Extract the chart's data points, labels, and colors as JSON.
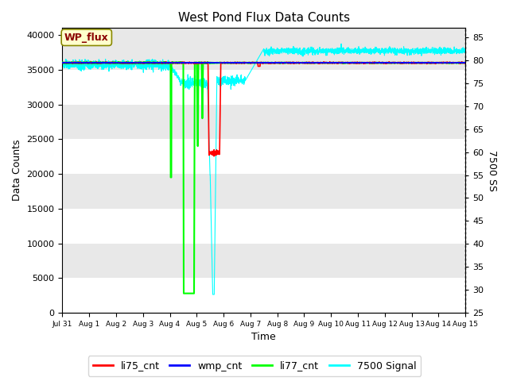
{
  "title": "West Pond Flux Data Counts",
  "xlabel": "Time",
  "ylabel": "Data Counts",
  "ylabel_right": "7500 SS",
  "annotation": "WP_flux",
  "xlim_days": [
    0,
    15
  ],
  "ylim_left": [
    0,
    41000
  ],
  "ylim_right": [
    25,
    87
  ],
  "xtick_labels": [
    "Jul 31",
    "Aug 1",
    "Aug 2",
    "Aug 3",
    "Aug 4",
    "Aug 5",
    "Aug 6",
    "Aug 7",
    "Aug 8",
    "Aug 9",
    "Aug 10",
    "Aug 11",
    "Aug 12",
    "Aug 13",
    "Aug 14",
    "Aug 15"
  ],
  "yticks_left": [
    0,
    5000,
    10000,
    15000,
    20000,
    25000,
    30000,
    35000,
    40000
  ],
  "yticks_right": [
    25,
    30,
    35,
    40,
    45,
    50,
    55,
    60,
    65,
    70,
    75,
    80,
    85
  ],
  "colors": {
    "li75_cnt": "#ff0000",
    "wmp_cnt": "#0000ff",
    "li77_cnt": "#00ff00",
    "signal_7500": "#00ffff",
    "background": "#e8e8e8",
    "grid_white": "#ffffff"
  },
  "legend_labels": [
    "li75_cnt",
    "wmp_cnt",
    "li77_cnt",
    "7500 Signal"
  ]
}
